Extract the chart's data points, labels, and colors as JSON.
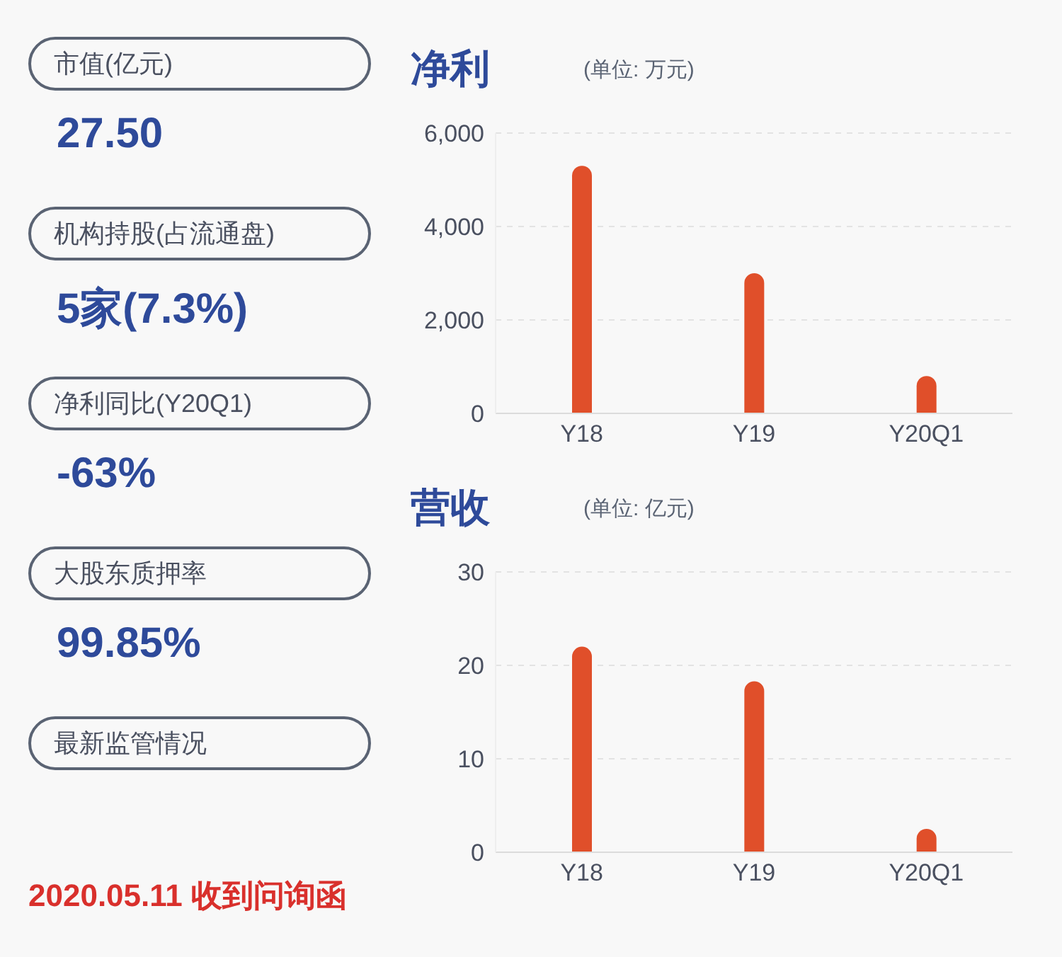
{
  "chart_data": [
    {
      "type": "other",
      "annotations": [
        "市值(亿元)",
        "27.50",
        "机构持股(占流通盘)",
        "5家(7.3%)",
        "净利同比(Y20Q1)",
        "-63%",
        "大股东质押率",
        "99.85%",
        "最新监管情况",
        "2020.05.11 收到问询函"
      ]
    },
    {
      "type": "bar",
      "title": "净利",
      "subtitle": "(单位: 万元)",
      "categories": [
        "Y18",
        "Y19",
        "Y20Q1"
      ],
      "values": [
        5300,
        3000,
        800
      ],
      "color": "#e04f2a",
      "ylim": [
        0,
        6000
      ],
      "yticks": [
        0,
        {
          "value": 2000,
          "label": "2,000"
        },
        {
          "value": 4000,
          "label": "4,000"
        },
        {
          "value": 6000,
          "label": "6,000"
        }
      ],
      "grid": "y",
      "legend": false
    },
    {
      "type": "bar",
      "title": "营收",
      "subtitle": "(单位: 亿元)",
      "categories": [
        "Y18",
        "Y19",
        "Y20Q1"
      ],
      "values": [
        22,
        18.3,
        2.5
      ],
      "color": "#e04f2a",
      "ylim": [
        0,
        30
      ],
      "yticks": [
        0,
        10,
        20,
        30
      ],
      "grid": "y",
      "legend": false
    }
  ]
}
